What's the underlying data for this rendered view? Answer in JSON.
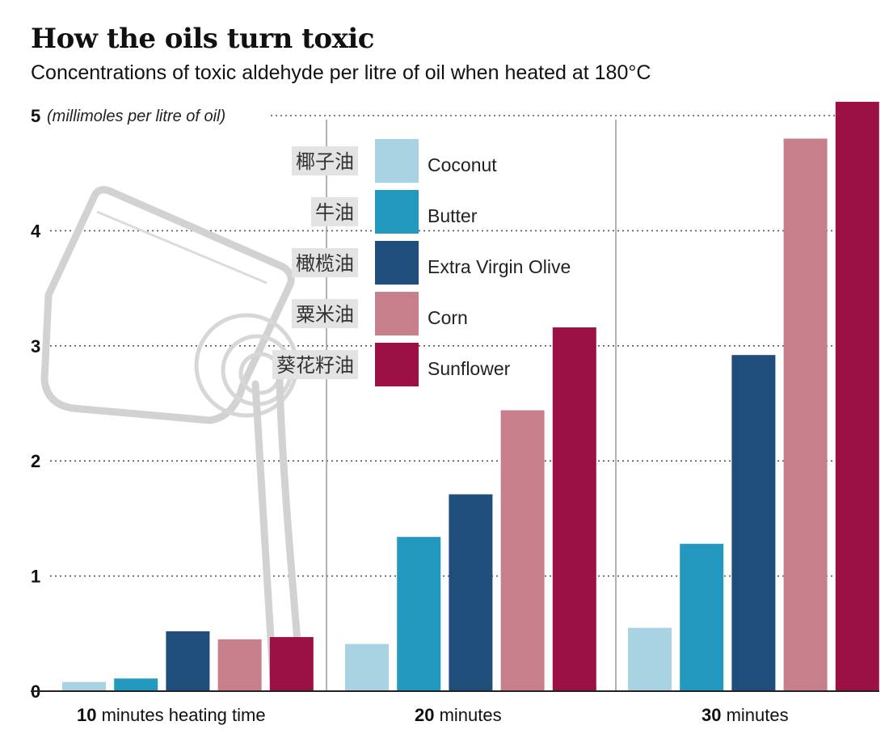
{
  "title": "How the oils turn toxic",
  "subtitle": "Concentrations of toxic aldehyde per litre of oil when heated at 180°C",
  "legend": [
    {
      "zh": "椰子油",
      "en": "Coconut"
    },
    {
      "zh": "牛油",
      "en": "Butter"
    },
    {
      "zh": "橄榄油",
      "en": "Extra Virgin Olive"
    },
    {
      "zh": "粟米油",
      "en": "Corn"
    },
    {
      "zh": "葵花籽油",
      "en": "Sunflower"
    }
  ],
  "chart_data": {
    "type": "bar",
    "title": "How the oils turn toxic",
    "subtitle": "Concentrations of toxic aldehyde per litre of oil when heated at 180°C",
    "ylabel": "(millimoles per litre of oil)",
    "ylim": [
      0,
      5
    ],
    "yticks": [
      "0",
      "1",
      "2",
      "3",
      "4",
      "5"
    ],
    "categories": [
      {
        "num": "10",
        "rest": " minutes heating time"
      },
      {
        "num": "20",
        "rest": " minutes"
      },
      {
        "num": "30",
        "rest": " minutes"
      }
    ],
    "series": [
      {
        "name": "Coconut",
        "color": "#a9d3e2",
        "values": [
          0.08,
          0.41,
          0.55
        ]
      },
      {
        "name": "Butter",
        "color": "#2499bf",
        "values": [
          0.11,
          1.34,
          1.28
        ]
      },
      {
        "name": "Extra Virgin Olive",
        "color": "#1f4e7c",
        "values": [
          0.52,
          1.71,
          2.92
        ]
      },
      {
        "name": "Corn",
        "color": "#c77f8c",
        "values": [
          0.45,
          2.44,
          4.8
        ]
      },
      {
        "name": "Sunflower",
        "color": "#9b1145",
        "values": [
          0.47,
          3.16,
          5.12
        ]
      }
    ],
    "grid": true,
    "legend_position": "top-left",
    "decoration": "pouring-oil-bottle-icon"
  }
}
